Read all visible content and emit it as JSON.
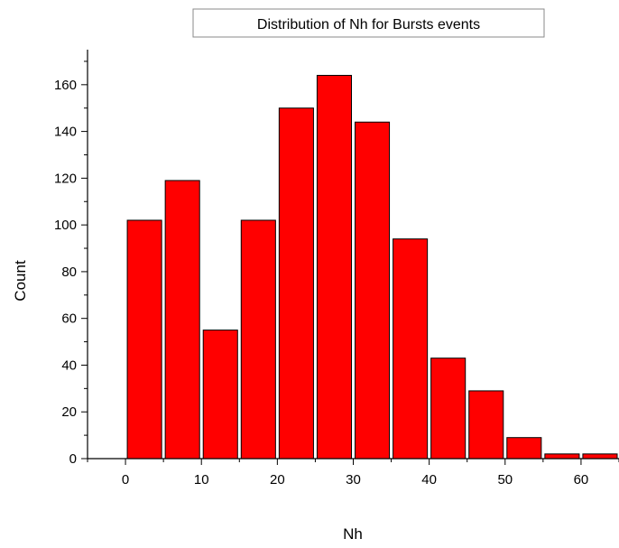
{
  "chart_data": {
    "type": "bar",
    "title": "Distribution of Nh for Bursts events",
    "xlabel": "Nh",
    "ylabel": "Count",
    "xlim": [
      -5,
      65
    ],
    "ylim": [
      0,
      175
    ],
    "xticks": [
      0,
      10,
      20,
      30,
      40,
      50,
      60
    ],
    "yticks": [
      0,
      20,
      40,
      60,
      80,
      100,
      120,
      140,
      160
    ],
    "bin_width": 5,
    "bins": [
      {
        "x": 2.5,
        "value": 102
      },
      {
        "x": 7.5,
        "value": 119
      },
      {
        "x": 12.5,
        "value": 55
      },
      {
        "x": 17.5,
        "value": 102
      },
      {
        "x": 22.5,
        "value": 150
      },
      {
        "x": 27.5,
        "value": 164
      },
      {
        "x": 32.5,
        "value": 144
      },
      {
        "x": 37.5,
        "value": 94
      },
      {
        "x": 42.5,
        "value": 43
      },
      {
        "x": 47.5,
        "value": 29
      },
      {
        "x": 52.5,
        "value": 9
      },
      {
        "x": 57.5,
        "value": 2
      },
      {
        "x": 62.5,
        "value": 2
      }
    ],
    "bar_color": "#ff0000",
    "grid": false,
    "legend": "none"
  }
}
